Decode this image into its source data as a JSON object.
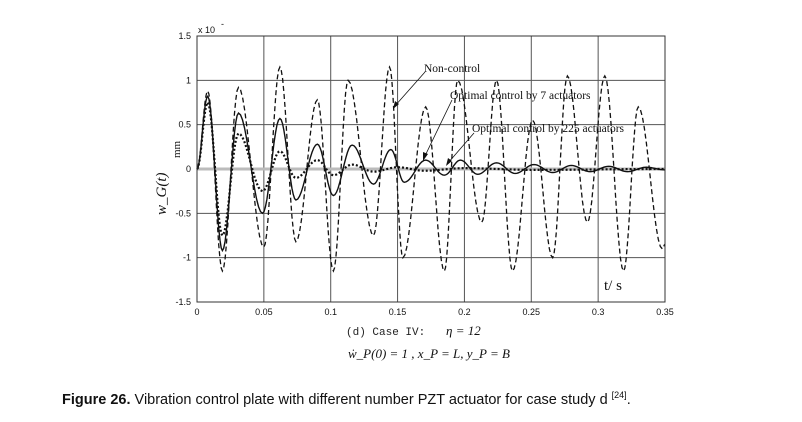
{
  "chart_data": {
    "type": "line",
    "xlabel": "t/ s",
    "ylabel": "w_G(t)",
    "yunit": "mm",
    "y_multiplier": "x 10",
    "y_multiplier_exp": "-",
    "xlim": [
      0,
      0.35
    ],
    "ylim": [
      -1.5,
      1.5
    ],
    "xticks": [
      "0",
      "0.05",
      "0.1",
      "0.15",
      "0.2",
      "0.25",
      "0.3",
      "0.35"
    ],
    "xtick_values": [
      0,
      0.05,
      0.1,
      0.15,
      0.2,
      0.25,
      0.3,
      0.35
    ],
    "yticks": [
      "1.5",
      "1",
      "0.5",
      "0",
      "-0.5",
      "-1",
      "-1.5"
    ],
    "ytick_values": [
      1.5,
      1,
      0.5,
      0,
      -0.5,
      -1,
      -1.5
    ],
    "grid": true,
    "subtitle_case": "(d) Case IV:",
    "subtitle_eta": "η = 12",
    "subtitle_conditions": "ẇ_P(0) = 1 , x_P = L, y_P = B",
    "series": [
      {
        "name": "Non-control",
        "style": "dashed",
        "extrema": [
          [
            0,
            0
          ],
          [
            0.008,
            0.88
          ],
          [
            0.019,
            -1.15
          ],
          [
            0.031,
            0.92
          ],
          [
            0.05,
            -0.88
          ],
          [
            0.062,
            1.15
          ],
          [
            0.074,
            -0.82
          ],
          [
            0.09,
            0.78
          ],
          [
            0.102,
            -1.15
          ],
          [
            0.113,
            1.0
          ],
          [
            0.132,
            -0.75
          ],
          [
            0.144,
            1.15
          ],
          [
            0.154,
            -1.0
          ],
          [
            0.171,
            0.7
          ],
          [
            0.185,
            -1.15
          ],
          [
            0.195,
            1.0
          ],
          [
            0.213,
            -0.6
          ],
          [
            0.224,
            1.0
          ],
          [
            0.236,
            -1.15
          ],
          [
            0.251,
            0.55
          ],
          [
            0.266,
            -1.0
          ],
          [
            0.277,
            1.05
          ],
          [
            0.292,
            -0.6
          ],
          [
            0.305,
            1.05
          ],
          [
            0.319,
            -1.15
          ],
          [
            0.33,
            0.7
          ],
          [
            0.348,
            -0.9
          ],
          [
            0.35,
            -0.85
          ]
        ]
      },
      {
        "name": "Optimal control by 7 actuators",
        "style": "solid",
        "extrema": [
          [
            0,
            0
          ],
          [
            0.008,
            0.82
          ],
          [
            0.019,
            -0.92
          ],
          [
            0.031,
            0.63
          ],
          [
            0.049,
            -0.5
          ],
          [
            0.062,
            0.57
          ],
          [
            0.074,
            -0.35
          ],
          [
            0.09,
            0.28
          ],
          [
            0.102,
            -0.3
          ],
          [
            0.116,
            0.27
          ],
          [
            0.132,
            -0.17
          ],
          [
            0.145,
            0.22
          ],
          [
            0.155,
            -0.15
          ],
          [
            0.171,
            0.1
          ],
          [
            0.185,
            -0.07
          ],
          [
            0.197,
            0.1
          ],
          [
            0.21,
            -0.06
          ],
          [
            0.224,
            0.07
          ],
          [
            0.238,
            -0.05
          ],
          [
            0.252,
            0.05
          ],
          [
            0.266,
            -0.04
          ],
          [
            0.28,
            0.04
          ],
          [
            0.294,
            -0.03
          ],
          [
            0.308,
            0.03
          ],
          [
            0.322,
            -0.03
          ],
          [
            0.336,
            0.02
          ],
          [
            0.35,
            -0.01
          ]
        ]
      },
      {
        "name": "Optimal control by 225 actuators",
        "style": "dotted",
        "extrema": [
          [
            0,
            0
          ],
          [
            0.008,
            0.75
          ],
          [
            0.019,
            -0.75
          ],
          [
            0.031,
            0.4
          ],
          [
            0.049,
            -0.25
          ],
          [
            0.062,
            0.2
          ],
          [
            0.074,
            -0.1
          ],
          [
            0.09,
            0.1
          ],
          [
            0.102,
            -0.07
          ],
          [
            0.116,
            0.05
          ],
          [
            0.132,
            -0.03
          ],
          [
            0.15,
            0.02
          ],
          [
            0.17,
            -0.02
          ],
          [
            0.2,
            0.01
          ],
          [
            0.25,
            -0.01
          ],
          [
            0.35,
            0
          ]
        ]
      }
    ],
    "annotations": [
      "Non-control",
      "Optimal control by 7 actuators",
      "Optimal control by 225 actuators"
    ]
  },
  "figure_caption": {
    "label": "Figure 26.",
    "text": " Vibration control plate with different number PZT actuator for case study d ",
    "ref": "[24]",
    "end": "."
  }
}
